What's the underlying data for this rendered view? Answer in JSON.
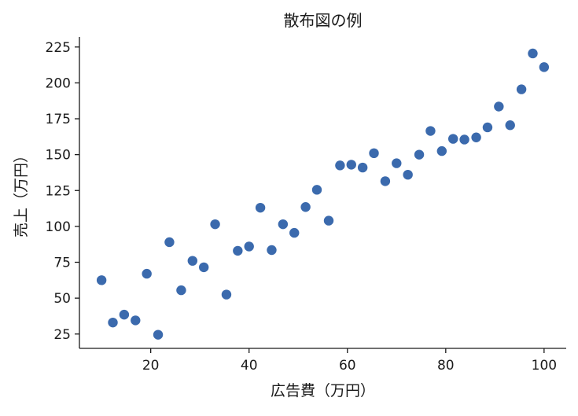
{
  "chart_data": {
    "type": "scatter",
    "title": "散布図の例",
    "xlabel": "広告費（万円）",
    "ylabel": "売上（万円）",
    "xlim": [
      5.5,
      104.5
    ],
    "ylim": [
      15,
      232
    ],
    "xticks": [
      20,
      40,
      60,
      80,
      100
    ],
    "yticks": [
      25,
      50,
      75,
      100,
      125,
      150,
      175,
      200,
      225
    ],
    "grid": false,
    "legend": "none",
    "marker_color": "#3b6aad",
    "series": [
      {
        "x": [
          10,
          12.3,
          14.6,
          16.9,
          19.2,
          21.5,
          23.8,
          26.2,
          28.5,
          30.8,
          33.1,
          35.4,
          37.7,
          40.0,
          42.3,
          44.6,
          46.9,
          49.2,
          51.5,
          53.8,
          56.2,
          58.5,
          60.8,
          63.1,
          65.4,
          67.7,
          70.0,
          72.3,
          74.6,
          76.9,
          79.2,
          81.5,
          83.8,
          86.2,
          88.5,
          90.8,
          93.1,
          95.4,
          97.7,
          100
        ],
        "y": [
          62.5,
          33,
          38.5,
          34.5,
          67,
          24.5,
          89,
          55.5,
          76,
          71.5,
          101.5,
          52.5,
          83,
          86,
          113,
          83.5,
          101.5,
          95.5,
          113.5,
          125.5,
          104,
          142.5,
          143,
          141,
          151,
          131.5,
          144,
          136,
          150,
          166.5,
          152.5,
          161,
          160.5,
          162,
          169,
          183.5,
          170.5,
          195.5,
          220.5,
          211
        ]
      }
    ]
  }
}
